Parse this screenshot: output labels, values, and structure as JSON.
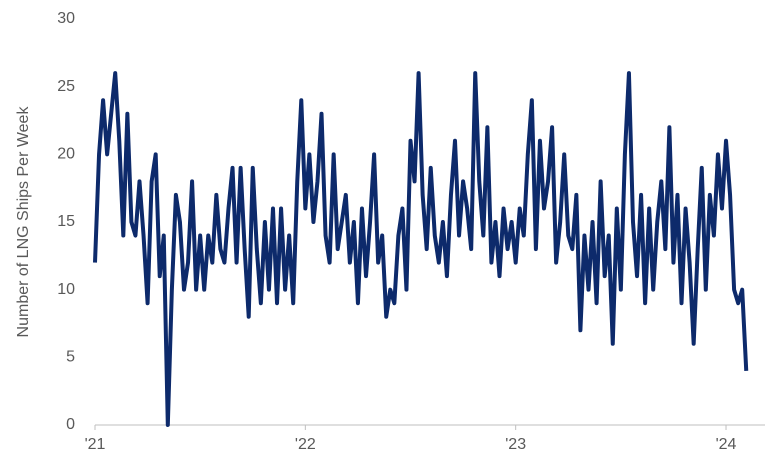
{
  "chart_data": {
    "type": "line",
    "y_label": "Number of LNG Ships Per Week",
    "categories": [
      "'21",
      null,
      null,
      null,
      null,
      null,
      null,
      null,
      null,
      null,
      null,
      null,
      null,
      null,
      null,
      null,
      null,
      null,
      null,
      null,
      null,
      null,
      null,
      null,
      null,
      null,
      null,
      null,
      null,
      null,
      null,
      null,
      null,
      null,
      null,
      null,
      null,
      null,
      null,
      null,
      null,
      null,
      null,
      null,
      null,
      null,
      null,
      null,
      null,
      null,
      null,
      null,
      "'22",
      null,
      null,
      null,
      null,
      null,
      null,
      null,
      null,
      null,
      null,
      null,
      null,
      null,
      null,
      null,
      null,
      null,
      null,
      null,
      null,
      null,
      null,
      null,
      null,
      null,
      null,
      null,
      null,
      null,
      null,
      null,
      null,
      null,
      null,
      null,
      null,
      null,
      null,
      null,
      null,
      null,
      null,
      null,
      null,
      null,
      null,
      null,
      null,
      null,
      null,
      null,
      "'23",
      null,
      null,
      null,
      null,
      null,
      null,
      null,
      null,
      null,
      null,
      null,
      null,
      null,
      null,
      null,
      null,
      null,
      null,
      null,
      null,
      null,
      null,
      null,
      null,
      null,
      null,
      null,
      null,
      null,
      null,
      null,
      null,
      null,
      null,
      null,
      null,
      null,
      null,
      null,
      null,
      null,
      null,
      null,
      null,
      null,
      null,
      null,
      null,
      null,
      null,
      null,
      "'24",
      null,
      null,
      null,
      null,
      null
    ],
    "series": [
      {
        "name": "LNG ships",
        "color": "#0d2a6b",
        "values": [
          12,
          20,
          24,
          20,
          23,
          26,
          21,
          14,
          23,
          15,
          14,
          18,
          14,
          9,
          18,
          20,
          11,
          14,
          0,
          10,
          17,
          15,
          10,
          12,
          18,
          10,
          14,
          10,
          14,
          12,
          17,
          13,
          12,
          16,
          19,
          12,
          19,
          13,
          8,
          19,
          13,
          9,
          15,
          10,
          16,
          9,
          16,
          10,
          14,
          9,
          18,
          24,
          16,
          20,
          15,
          18,
          23,
          14,
          12,
          20,
          13,
          15,
          17,
          12,
          15,
          9,
          16,
          11,
          15,
          20,
          12,
          14,
          8,
          10,
          9,
          14,
          16,
          10,
          21,
          18,
          26,
          17,
          13,
          19,
          14,
          12,
          15,
          11,
          17,
          21,
          14,
          18,
          16,
          13,
          26,
          18,
          14,
          22,
          12,
          15,
          11,
          16,
          13,
          15,
          12,
          16,
          14,
          20,
          24,
          13,
          21,
          16,
          18,
          22,
          12,
          15,
          20,
          14,
          13,
          17,
          7,
          14,
          10,
          15,
          9,
          18,
          11,
          14,
          6,
          16,
          10,
          20,
          26,
          15,
          11,
          17,
          9,
          16,
          10,
          15,
          18,
          13,
          22,
          12,
          17,
          9,
          16,
          12,
          6,
          13,
          19,
          10,
          17,
          14,
          20,
          16,
          21,
          17,
          10,
          9,
          10,
          4
        ]
      }
    ],
    "ylim": [
      0,
      30
    ],
    "yticks": [
      0,
      5,
      10,
      15,
      20,
      25,
      30
    ],
    "grid": false
  }
}
